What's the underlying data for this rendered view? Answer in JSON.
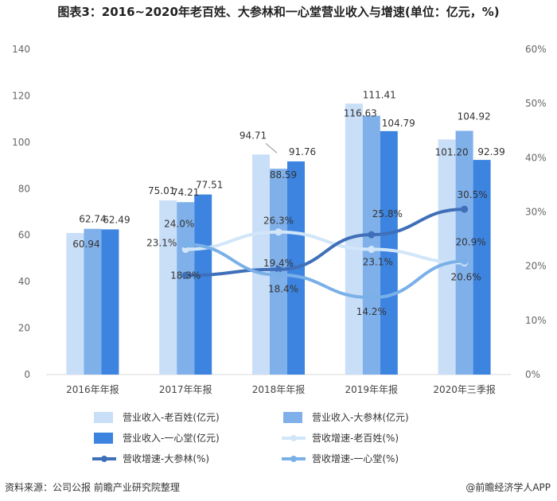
{
  "title": "图表3：2016~2020年老百姓、大参林和一心堂营业收入与增速(单位：亿元，%)",
  "footer": {
    "source": "资料来源：公司公报 前瞻产业研究院整理",
    "brand": "@前瞻经济学人APP"
  },
  "chart_data": {
    "type": "bar",
    "categories": [
      "2016年年报",
      "2017年年报",
      "2018年年报",
      "2019年年报",
      "2020年三季报"
    ],
    "ylim": [
      0,
      140
    ],
    "yticks": [
      "0",
      "20",
      "40",
      "60",
      "80",
      "100",
      "120",
      "140"
    ],
    "y2lim": [
      0,
      60
    ],
    "y2ticks": [
      "0%",
      "10%",
      "20%",
      "30%",
      "40%",
      "50%",
      "60%"
    ],
    "bar_series": [
      {
        "name": "营业收入-老百姓(亿元)",
        "color": "#c9def7",
        "values": [
          60.94,
          75.01,
          94.71,
          116.63,
          101.2
        ],
        "labels": [
          "60.94",
          "75.01",
          "94.71",
          "116.63",
          "101.20"
        ]
      },
      {
        "name": "营业收入-大参林(亿元)",
        "color": "#7fb0ea",
        "values": [
          62.74,
          74.21,
          88.59,
          111.41,
          104.92
        ],
        "labels": [
          "62.74",
          "74.21",
          "88.59",
          "111.41",
          "104.92"
        ]
      },
      {
        "name": "营业收入-一心堂(亿元)",
        "color": "#3d84e0",
        "values": [
          62.49,
          77.51,
          91.76,
          104.79,
          92.39
        ],
        "labels": [
          "62.49",
          "77.51",
          "91.76",
          "104.79",
          "92.39"
        ]
      }
    ],
    "line_series": [
      {
        "name": "营收增速-老百姓(%)",
        "color": "#d2e6fa",
        "values": [
          null,
          23.1,
          26.3,
          23.1,
          20.6
        ],
        "labels": [
          "",
          "23.1%",
          "26.3%",
          "23.1%",
          "20.6%"
        ]
      },
      {
        "name": "营收增速-大参林(%)",
        "color": "#3e6fb8",
        "values": [
          null,
          18.3,
          19.4,
          25.8,
          30.5
        ],
        "labels": [
          "",
          "18.3%",
          "19.4%",
          "25.8%",
          "30.5%"
        ]
      },
      {
        "name": "营收增速-一心堂(%)",
        "color": "#7ab0e8",
        "values": [
          null,
          24.0,
          18.4,
          14.2,
          20.9
        ],
        "labels": [
          "",
          "24.0%",
          "18.4%",
          "14.2%",
          "20.9%"
        ]
      }
    ]
  }
}
